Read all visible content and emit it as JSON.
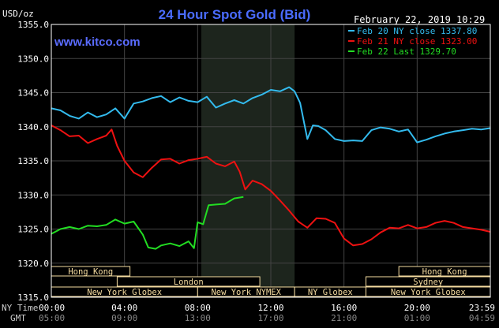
{
  "header": {
    "unit_label": "USD/oz",
    "title": "24 Hour Spot Gold (Bid)",
    "date": "February 22, 2019 10:29",
    "watermark": "www.kitco.com",
    "ny_time_label": "NY Time",
    "gmt_label": "GMT"
  },
  "colors": {
    "background": "#000000",
    "frame": "#ffffff",
    "title": "#4a6cff",
    "watermark": "#5a6cff",
    "grid": "#444444",
    "ny_session_shade": "#1d251d",
    "session_box": "#f5dca0",
    "feb20": "#33bbee",
    "feb21": "#ee1111",
    "feb22": "#22dd22"
  },
  "chart_data": {
    "type": "line",
    "title": "24 Hour Spot Gold (Bid)",
    "ylabel": "USD/oz",
    "xlabel": "",
    "ylim": [
      1315,
      1355
    ],
    "xlim": [
      0,
      24
    ],
    "grid": true,
    "legend_position": "top-right",
    "y_ticks": [
      "1315.0",
      "1320.0",
      "1325.0",
      "1330.0",
      "1335.0",
      "1340.0",
      "1345.0",
      "1350.0",
      "1355.0"
    ],
    "x_ticks_ny": [
      "00:00",
      "04:00",
      "08:00",
      "12:00",
      "16:00",
      "20:00",
      "23:59"
    ],
    "x_ticks_gmt": [
      "05:00",
      "09:00",
      "13:00",
      "17:00",
      "21:00",
      "01:00",
      "04:59"
    ],
    "x_tick_hours": [
      0,
      4,
      8,
      12,
      16,
      20,
      24
    ],
    "legend": [
      "Feb 20 NY close 1337.80",
      "Feb 21 NY close 1323.00",
      "Feb 22 Last 1329.70"
    ],
    "ny_session_hours": [
      8.2,
      13.3
    ],
    "sessions": [
      {
        "name": "Hong Kong",
        "start": 0,
        "end": 4.3,
        "row": 0
      },
      {
        "name": "Hong Kong",
        "start": 19.0,
        "end": 24.0,
        "row": 0
      },
      {
        "name": "London",
        "start": 3.6,
        "end": 11.4,
        "row": 1
      },
      {
        "name": "Sydney",
        "start": 17.2,
        "end": 24.0,
        "row": 1
      },
      {
        "name": "New York Globex",
        "start": 0,
        "end": 8.0,
        "row": 2
      },
      {
        "name": "New York NYMEX",
        "start": 8.0,
        "end": 13.3,
        "row": 2
      },
      {
        "name": "NY Globex",
        "start": 13.3,
        "end": 17.2,
        "row": 2
      },
      {
        "name": "New York Globex",
        "start": 17.2,
        "end": 24.0,
        "row": 2
      }
    ],
    "series": [
      {
        "name": "Feb 20",
        "x": [
          0,
          0.5,
          1.0,
          1.5,
          2.0,
          2.5,
          3.0,
          3.5,
          4.0,
          4.5,
          5.0,
          5.5,
          6.0,
          6.5,
          7.0,
          7.5,
          8.0,
          8.5,
          9.0,
          9.5,
          10.0,
          10.5,
          11.0,
          11.5,
          12.0,
          12.5,
          13.0,
          13.3,
          13.6,
          14.0,
          14.3,
          14.6,
          15.0,
          15.5,
          16.0,
          16.5,
          17.0,
          17.5,
          18.0,
          18.5,
          19.0,
          19.5,
          20.0,
          20.5,
          21.0,
          21.5,
          22.0,
          22.5,
          23.0,
          23.5,
          24.0
        ],
        "values": [
          1342.7,
          1342.4,
          1341.6,
          1341.2,
          1342.1,
          1341.4,
          1341.8,
          1342.7,
          1341.2,
          1343.4,
          1343.7,
          1344.2,
          1344.5,
          1343.6,
          1344.3,
          1343.8,
          1343.6,
          1344.4,
          1342.8,
          1343.4,
          1343.9,
          1343.4,
          1344.2,
          1344.7,
          1345.4,
          1345.2,
          1345.8,
          1345.2,
          1343.5,
          1338.2,
          1340.2,
          1340.1,
          1339.5,
          1338.2,
          1337.9,
          1338.0,
          1337.9,
          1339.5,
          1339.9,
          1339.7,
          1339.3,
          1339.6,
          1337.7,
          1338.1,
          1338.6,
          1339.0,
          1339.3,
          1339.5,
          1339.7,
          1339.6,
          1339.8
        ]
      },
      {
        "name": "Feb 21",
        "x": [
          0,
          0.5,
          1.0,
          1.5,
          2.0,
          2.5,
          3.0,
          3.3,
          3.6,
          4.0,
          4.5,
          5.0,
          5.5,
          6.0,
          6.5,
          7.0,
          7.5,
          8.0,
          8.5,
          9.0,
          9.5,
          10.0,
          10.3,
          10.6,
          11.0,
          11.5,
          12.0,
          12.5,
          13.0,
          13.5,
          14.0,
          14.5,
          15.0,
          15.5,
          16.0,
          16.5,
          17.0,
          17.5,
          18.0,
          18.5,
          19.0,
          19.5,
          20.0,
          20.5,
          21.0,
          21.5,
          22.0,
          22.5,
          23.0,
          23.5,
          24.0
        ],
        "values": [
          1340.2,
          1339.5,
          1338.6,
          1338.7,
          1337.6,
          1338.2,
          1338.7,
          1339.6,
          1337.2,
          1335.0,
          1333.3,
          1332.6,
          1334.0,
          1335.2,
          1335.3,
          1334.6,
          1335.1,
          1335.3,
          1335.6,
          1334.6,
          1334.2,
          1334.9,
          1333.4,
          1330.8,
          1332.1,
          1331.6,
          1330.6,
          1329.2,
          1327.7,
          1326.1,
          1325.2,
          1326.6,
          1326.5,
          1325.9,
          1323.6,
          1322.6,
          1322.8,
          1323.5,
          1324.5,
          1325.2,
          1325.1,
          1325.6,
          1325.1,
          1325.3,
          1325.9,
          1326.2,
          1325.9,
          1325.3,
          1325.1,
          1324.9,
          1324.6
        ]
      },
      {
        "name": "Feb 22",
        "x": [
          0,
          0.5,
          1.0,
          1.5,
          2.0,
          2.5,
          3.0,
          3.5,
          4.0,
          4.5,
          5.0,
          5.3,
          5.7,
          6.0,
          6.5,
          7.0,
          7.5,
          7.8,
          8.0,
          8.3,
          8.6,
          9.0,
          9.5,
          10.0,
          10.5
        ],
        "values": [
          1324.3,
          1325.0,
          1325.3,
          1325.0,
          1325.5,
          1325.4,
          1325.6,
          1326.4,
          1325.8,
          1326.1,
          1324.2,
          1322.3,
          1322.1,
          1322.6,
          1322.9,
          1322.5,
          1323.2,
          1322.2,
          1326.0,
          1325.7,
          1328.5,
          1328.6,
          1328.7,
          1329.5,
          1329.7
        ]
      }
    ]
  }
}
